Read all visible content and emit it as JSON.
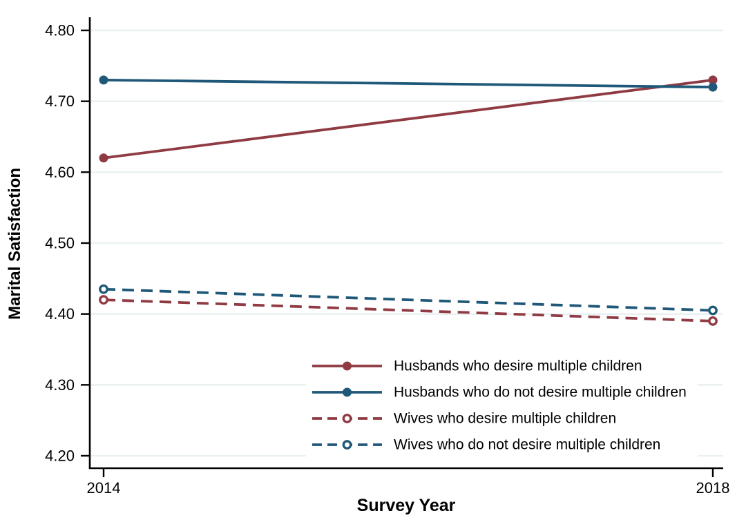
{
  "chart_data": {
    "type": "line",
    "title": "",
    "xlabel": "Survey Year",
    "ylabel": "Marital Satisfaction",
    "x": [
      2014,
      2018
    ],
    "xtick_labels": [
      "2014",
      "2018"
    ],
    "yticks": [
      4.2,
      4.3,
      4.4,
      4.5,
      4.6,
      4.7,
      4.8
    ],
    "ytick_labels": [
      "4.20",
      "4.30",
      "4.40",
      "4.50",
      "4.60",
      "4.70",
      "4.80"
    ],
    "ylim": [
      4.2,
      4.8
    ],
    "grid": true,
    "legend_position": "inside-lower-right",
    "series": [
      {
        "id": "husbands-desire",
        "name": "Husbands who desire multiple children",
        "values": [
          4.62,
          4.73
        ],
        "color": "#903B44",
        "line_style": "solid",
        "marker": "filled-circle"
      },
      {
        "id": "husbands-no-desire",
        "name": "Husbands who do not desire multiple children",
        "values": [
          4.73,
          4.72
        ],
        "color": "#1F5878",
        "line_style": "solid",
        "marker": "filled-circle"
      },
      {
        "id": "wives-desire",
        "name": "Wives who desire multiple children",
        "values": [
          4.42,
          4.39
        ],
        "color": "#903B44",
        "line_style": "dashed",
        "marker": "open-circle"
      },
      {
        "id": "wives-no-desire",
        "name": "Wives who do not desire multiple children",
        "values": [
          4.435,
          4.405
        ],
        "color": "#1F5878",
        "line_style": "dashed",
        "marker": "open-circle"
      }
    ],
    "colors": {
      "axis": "#000000",
      "grid": "#EBF1F1",
      "background": "#FFFFFF",
      "maroon": "#903B44",
      "navy": "#1F5878"
    }
  }
}
